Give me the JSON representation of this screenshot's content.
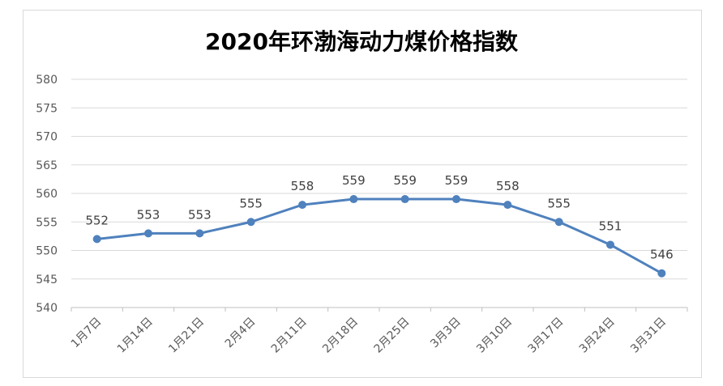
{
  "chart_data": {
    "type": "line",
    "title": "2020年环渤海动力煤价格指数",
    "categories": [
      "1月7日",
      "1月14日",
      "1月21日",
      "2月4日",
      "2月11日",
      "2月18日",
      "2月25日",
      "3月3日",
      "3月10日",
      "3月17日",
      "3月24日",
      "3月31日"
    ],
    "series": [
      {
        "values": [
          552,
          553,
          553,
          555,
          558,
          559,
          559,
          559,
          558,
          555,
          551,
          546
        ]
      }
    ],
    "ylim": [
      540,
      580
    ],
    "yticks": [
      540,
      545,
      550,
      555,
      560,
      565,
      570,
      575,
      580
    ],
    "grid": true,
    "data_labels": true,
    "colors": {
      "line": "#4f81bd",
      "grid": "#d9d9d9",
      "text": "#595959"
    }
  }
}
